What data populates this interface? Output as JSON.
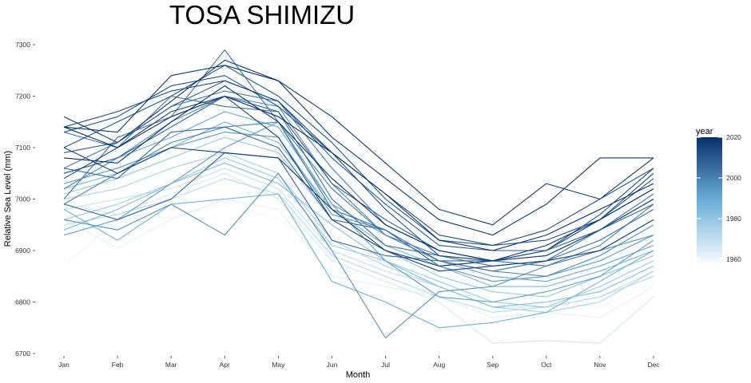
{
  "chart_data": {
    "type": "line",
    "title": "TOSA SHIMIZU",
    "xlabel": "Month",
    "ylabel": "Relative Sea Level (mm)",
    "categories": [
      "Jan",
      "Feb",
      "Mar",
      "Apr",
      "May",
      "Jun",
      "Jul",
      "Aug",
      "Sep",
      "Oct",
      "Nov",
      "Dec"
    ],
    "ylim": [
      6700,
      7300
    ],
    "yticks": [
      6700,
      6800,
      6900,
      7000,
      7100,
      7200,
      7300
    ],
    "grid": false,
    "legend": {
      "title": "year",
      "position": "right",
      "type": "colorbar",
      "range": [
        1958,
        2020
      ],
      "ticks": [
        1960,
        1980,
        2000,
        2020
      ]
    },
    "colors": {
      "low": "#f7fbff",
      "mid": "#6aaed6",
      "high": "#08306b"
    },
    "series": [
      {
        "year": 1960,
        "values": [
          6870,
          6960,
          6965,
          6990,
          6960,
          6900,
          6870,
          6830,
          6800,
          6800,
          6790,
          6840
        ]
      },
      {
        "year": 1963,
        "values": [
          6960,
          6905,
          6960,
          7000,
          6980,
          6850,
          6830,
          6810,
          6770,
          6780,
          6770,
          6830
        ]
      },
      {
        "year": 1966,
        "values": [
          6990,
          6970,
          7010,
          7050,
          7000,
          6880,
          6840,
          6800,
          6720,
          6725,
          6720,
          6810
        ]
      },
      {
        "year": 1969,
        "values": [
          6980,
          7000,
          7020,
          7060,
          7020,
          6900,
          6860,
          6830,
          6790,
          6790,
          6810,
          6860
        ]
      },
      {
        "year": 1972,
        "values": [
          6950,
          6970,
          7000,
          7040,
          7010,
          6890,
          6850,
          6810,
          6780,
          6790,
          6810,
          6850
        ]
      },
      {
        "year": 1975,
        "values": [
          7000,
          7020,
          7060,
          7090,
          7050,
          6920,
          6870,
          6830,
          6790,
          6780,
          6800,
          6860
        ]
      },
      {
        "year": 1978,
        "values": [
          6960,
          6990,
          7030,
          7080,
          7040,
          6910,
          6880,
          6840,
          6800,
          6790,
          6830,
          6880
        ]
      },
      {
        "year": 1980,
        "values": [
          7010,
          7040,
          7080,
          7120,
          7090,
          6960,
          6900,
          6850,
          6820,
          6810,
          6850,
          6890
        ]
      },
      {
        "year": 1983,
        "values": [
          6940,
          6980,
          7030,
          7070,
          7030,
          6950,
          6880,
          6830,
          6790,
          6800,
          6820,
          6870
        ]
      },
      {
        "year": 1986,
        "values": [
          7020,
          7050,
          7100,
          7150,
          7110,
          6980,
          6910,
          6870,
          6830,
          6830,
          6860,
          6900
        ]
      },
      {
        "year": 1988,
        "values": [
          6980,
          6920,
          6990,
          7000,
          7010,
          6840,
          6800,
          6750,
          6760,
          6780,
          6840,
          6900
        ]
      },
      {
        "year": 1991,
        "values": [
          7050,
          7080,
          7120,
          7170,
          7140,
          6990,
          6930,
          6880,
          6850,
          6840,
          6870,
          6910
        ]
      },
      {
        "year": 1993,
        "values": [
          6930,
          6960,
          7030,
          7100,
          7150,
          6990,
          6880,
          6810,
          6800,
          6820,
          6850,
          6920
        ]
      },
      {
        "year": 1995,
        "values": [
          7030,
          7060,
          7100,
          7130,
          7120,
          6970,
          6940,
          6870,
          6840,
          6850,
          6880,
          6930
        ]
      },
      {
        "year": 1996,
        "values": [
          6960,
          6940,
          6990,
          6930,
          7050,
          6900,
          6730,
          6820,
          6830,
          6870,
          6900,
          6930
        ]
      },
      {
        "year": 1998,
        "values": [
          7020,
          7080,
          7150,
          7200,
          7180,
          7030,
          6930,
          6880,
          6860,
          6850,
          6890,
          6950
        ]
      },
      {
        "year": 2000,
        "values": [
          6990,
          7050,
          7110,
          7140,
          7150,
          7020,
          6930,
          6890,
          6880,
          6870,
          6910,
          6990
        ]
      },
      {
        "year": 2001,
        "values": [
          7060,
          7110,
          7180,
          7210,
          7190,
          7060,
          6950,
          6900,
          6880,
          6870,
          6900,
          6960
        ]
      },
      {
        "year": 2003,
        "values": [
          7000,
          7120,
          7160,
          7290,
          7150,
          6980,
          6940,
          6880,
          6860,
          6880,
          6940,
          7010
        ]
      },
      {
        "year": 2004,
        "values": [
          7130,
          7100,
          7200,
          7180,
          7170,
          7000,
          6910,
          6890,
          6870,
          6880,
          6920,
          6980
        ]
      },
      {
        "year": 2005,
        "values": [
          7060,
          7040,
          7130,
          7140,
          7100,
          6960,
          6940,
          6870,
          6880,
          6900,
          6960,
          7020
        ]
      },
      {
        "year": 2007,
        "values": [
          6990,
          6960,
          7000,
          7090,
          7080,
          6920,
          6890,
          6880,
          6880,
          6900,
          6940,
          6990
        ]
      },
      {
        "year": 2008,
        "values": [
          7050,
          7080,
          7140,
          7200,
          7170,
          7030,
          6960,
          6900,
          6880,
          6890,
          6940,
          7000
        ]
      },
      {
        "year": 2010,
        "values": [
          7090,
          7110,
          7180,
          7230,
          7190,
          7080,
          6990,
          6910,
          6900,
          6900,
          6960,
          7040
        ]
      },
      {
        "year": 2011,
        "values": [
          7100,
          7150,
          7200,
          7260,
          7200,
          7110,
          7000,
          6920,
          6910,
          6920,
          6960,
          7050
        ]
      },
      {
        "year": 2012,
        "values": [
          7130,
          7160,
          7220,
          7240,
          7180,
          7090,
          6980,
          6890,
          6880,
          6900,
          6970,
          7060
        ]
      },
      {
        "year": 2013,
        "values": [
          7140,
          7170,
          7210,
          7230,
          7190,
          7090,
          7010,
          6930,
          6910,
          6940,
          7000,
          7060
        ]
      },
      {
        "year": 2015,
        "values": [
          7040,
          7100,
          7170,
          7200,
          7120,
          6960,
          6900,
          6870,
          6880,
          6890,
          6940,
          7000
        ]
      },
      {
        "year": 2016,
        "values": [
          7100,
          7050,
          7100,
          7090,
          7080,
          6980,
          6900,
          6860,
          6870,
          6880,
          6900,
          6960
        ]
      },
      {
        "year": 2017,
        "values": [
          7160,
          7110,
          7190,
          7270,
          7230,
          7160,
          7070,
          6980,
          6950,
          7030,
          7000,
          7080
        ]
      },
      {
        "year": 2018,
        "values": [
          7140,
          7130,
          7240,
          7260,
          7230,
          7120,
          7040,
          6960,
          6930,
          6990,
          7080,
          7080
        ]
      },
      {
        "year": 2019,
        "values": [
          7080,
          7070,
          7150,
          7220,
          7150,
          7040,
          6950,
          6900,
          6880,
          6910,
          6960,
          7020
        ]
      },
      {
        "year": 2020,
        "values": [
          7140,
          7100,
          7160,
          7200,
          7160,
          7090,
          7010,
          6920,
          6900,
          6930,
          6980,
          7030
        ]
      }
    ]
  }
}
